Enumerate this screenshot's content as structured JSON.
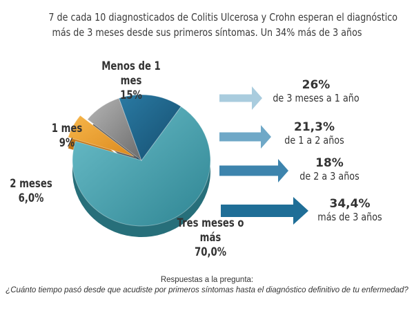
{
  "title": {
    "line1": "7 de cada 10 diagnosticados de Colitis Ulcerosa y Crohn esperan el diagnóstico",
    "line2": "más de 3 meses desde sus primeros síntomas. Un 34% más de 3 años"
  },
  "chart_data": [
    {
      "type": "pie",
      "slices": [
        {
          "label": "Tres meses o más",
          "value_label": "70,0%",
          "value": 70.0,
          "color": "#3f98a4"
        },
        {
          "label": "2 meses",
          "value_label": "6,0%",
          "value": 6.0,
          "color": "#f0a436"
        },
        {
          "label": "1 mes",
          "value_label": "9%",
          "value": 9,
          "color": "#8d8d8d"
        },
        {
          "label": "Menos de 1 mes",
          "value_label": "15%",
          "value": 15,
          "color": "#1d6388"
        }
      ]
    },
    {
      "type": "bar",
      "series": [
        {
          "value_label": "26%",
          "value": 26,
          "range": "de 3 meses a 1 año",
          "color": "#a9ccde"
        },
        {
          "value_label": "21,3%",
          "value": 21.3,
          "range": "de 1 a 2 años",
          "color": "#6fa8c7"
        },
        {
          "value_label": "18%",
          "value": 18,
          "range": "de 2 a 3 años",
          "color": "#3d84ad"
        },
        {
          "value_label": "34,4%",
          "value": 34.4,
          "range": "más de 3 años",
          "color": "#1f6e97"
        }
      ]
    }
  ],
  "footer": {
    "line1": "Respuestas a la pregunta:",
    "line2": "¿Cuánto tiempo pasó desde que acudiste por primeros síntomas hasta el diagnóstico definitivo de tu enfermedad?"
  }
}
